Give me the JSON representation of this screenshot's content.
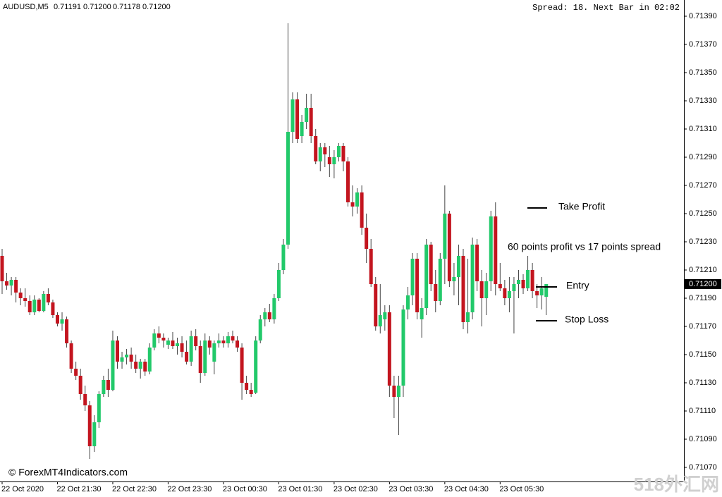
{
  "chart_data": {
    "type": "candlestick",
    "title": "AUDUSD,M5",
    "bar_values": [
      0.71191,
      {
        "value": 0.712,
        "label": "0.71200"
      },
      0.71178,
      {
        "value": 0.712,
        "label": "0.71200"
      }
    ],
    "status_text": "Spread: 18. Next Bar in 02:02",
    "copyright": "© ForexMT4Indicators.com",
    "watermark": "518外汇网",
    "annotation": "60 points profit vs 17 points spread",
    "up_color": "#22c96a",
    "down_color": "#c3151f",
    "wick_color": "#444444",
    "ylim": [
      0.7106,
      0.71398
    ],
    "yticks": [
      {
        "value": 0.7139,
        "label": "0.71390"
      },
      {
        "value": 0.7137,
        "label": "0.71370"
      },
      {
        "value": 0.7135,
        "label": "0.71350"
      },
      {
        "value": 0.7133,
        "label": "0.71330"
      },
      {
        "value": 0.7131,
        "label": "0.71310"
      },
      {
        "value": 0.7129,
        "label": "0.71290"
      },
      {
        "value": 0.7127,
        "label": "0.71270"
      },
      {
        "value": 0.7125,
        "label": "0.71250"
      },
      {
        "value": 0.7123,
        "label": "0.71230"
      },
      {
        "value": 0.7121,
        "label": "0.71210"
      },
      {
        "value": 0.7119,
        "label": "0.71190"
      },
      {
        "value": 0.7117,
        "label": "0.71170"
      },
      {
        "value": 0.7115,
        "label": "0.71150"
      },
      {
        "value": 0.7113,
        "label": "0.71130"
      },
      {
        "value": 0.7111,
        "label": "0.71110"
      },
      {
        "value": 0.7109,
        "label": "0.71090"
      },
      {
        "value": 0.7107,
        "label": "0.71070"
      }
    ],
    "current_price": {
      "value": 0.712,
      "label": "0.71200"
    },
    "levels": [
      {
        "label": "Take Profit",
        "value": 0.71254
      },
      {
        "label": "Entry",
        "value": 0.71198
      },
      {
        "label": "Stop Loss",
        "value": 0.71174
      }
    ],
    "categories": [
      "22 Oct 2020",
      null,
      null,
      null,
      null,
      null,
      null,
      null,
      null,
      null,
      null,
      null,
      "22 Oct 21:30",
      null,
      null,
      null,
      null,
      null,
      null,
      null,
      null,
      null,
      null,
      null,
      "22 Oct 22:30",
      null,
      null,
      null,
      null,
      null,
      null,
      null,
      null,
      null,
      null,
      null,
      "22 Oct 23:30",
      null,
      null,
      null,
      null,
      null,
      null,
      null,
      null,
      null,
      null,
      null,
      "23 Oct 00:30",
      null,
      null,
      null,
      null,
      null,
      null,
      null,
      null,
      null,
      null,
      null,
      "23 Oct 01:30",
      null,
      null,
      null,
      null,
      null,
      null,
      null,
      null,
      null,
      null,
      null,
      "23 Oct 02:30",
      null,
      null,
      null,
      null,
      null,
      null,
      null,
      null,
      null,
      null,
      null,
      "23 Oct 03:30",
      null,
      null,
      null,
      null,
      null,
      null,
      null,
      null,
      null,
      null,
      null,
      "23 Oct 04:30",
      null,
      null,
      null,
      null,
      null,
      null,
      null,
      null,
      null,
      null,
      null,
      "23 Oct 05:30",
      null,
      null,
      null,
      null,
      null,
      null,
      null,
      null,
      null,
      null
    ],
    "open": [
      0.7122,
      0.71202,
      0.71199,
      0.71203,
      0.71194,
      0.7119,
      0.71188,
      0.7118,
      0.71189,
      0.71181,
      0.71193,
      0.71187,
      0.71178,
      0.71172,
      0.71175,
      0.71158,
      0.7114,
      0.71135,
      0.71122,
      0.71114,
      0.71085,
      0.71102,
      0.71122,
      0.71132,
      0.71125,
      0.7116,
      0.71145,
      0.71148,
      0.7115,
      0.71145,
      0.7114,
      0.71145,
      0.71138,
      0.71155,
      0.71165,
      0.71162,
      0.71157,
      0.7116,
      0.71156,
      0.71158,
      0.71152,
      0.71145,
      0.71163,
      0.71156,
      0.71137,
      0.7116,
      0.71145,
      0.71158,
      0.7116,
      0.71158,
      0.71163,
      0.7116,
      0.71155,
      0.7113,
      0.71125,
      0.71123,
      0.7116,
      0.71175,
      0.7118,
      0.71175,
      0.7119,
      0.7121,
      0.71228,
      0.71308,
      0.71331,
      0.71305,
      0.71315,
      0.71325,
      0.71305,
      0.71287,
      0.71297,
      0.7129,
      0.71285,
      0.7129,
      0.71298,
      0.71287,
      0.71258,
      0.71255,
      0.71265,
      0.7124,
      0.71225,
      0.712,
      0.7117,
      0.71175,
      0.7118,
      0.71128,
      0.7112,
      0.71128,
      0.71182,
      0.71192,
      0.71218,
      0.71175,
      0.71183,
      0.71228,
      0.712,
      0.71188,
      0.71218,
      0.7125,
      0.71202,
      0.71205,
      0.7122,
      0.71173,
      0.7118,
      0.71228,
      0.71202,
      0.7119,
      0.71202,
      0.71248,
      0.712,
      0.71197,
      0.7119,
      0.71195,
      0.712,
      0.71203,
      0.71197,
      0.7121,
      0.71195,
      0.71192,
      0.71191
    ],
    "high": [
      0.71225,
      0.71208,
      0.71205,
      0.71205,
      0.71197,
      0.71197,
      0.71192,
      0.71192,
      0.7119,
      0.71195,
      0.71197,
      0.71189,
      0.7118,
      0.7118,
      0.71177,
      0.7116,
      0.71145,
      0.7114,
      0.71128,
      0.71117,
      0.71107,
      0.71124,
      0.71135,
      0.7114,
      0.71167,
      0.71163,
      0.71152,
      0.71154,
      0.71155,
      0.7115,
      0.71147,
      0.71147,
      0.71158,
      0.71168,
      0.7117,
      0.71165,
      0.71162,
      0.71166,
      0.71162,
      0.71163,
      0.7116,
      0.71167,
      0.71168,
      0.7116,
      0.71165,
      0.71163,
      0.7116,
      0.71165,
      0.71163,
      0.71166,
      0.71167,
      0.71163,
      0.71158,
      0.71135,
      0.7113,
      0.71163,
      0.71178,
      0.71183,
      0.71186,
      0.71193,
      0.71215,
      0.71232,
      0.71385,
      0.71336,
      0.71336,
      0.7132,
      0.71335,
      0.71335,
      0.7131,
      0.713,
      0.713,
      0.71298,
      0.71295,
      0.713,
      0.713,
      0.7129,
      0.7127,
      0.71268,
      0.7127,
      0.7125,
      0.71232,
      0.71205,
      0.712,
      0.71185,
      0.71185,
      0.71135,
      0.71135,
      0.71185,
      0.71198,
      0.71222,
      0.71222,
      0.7119,
      0.71232,
      0.7123,
      0.7121,
      0.71222,
      0.7127,
      0.71252,
      0.71215,
      0.71228,
      0.71225,
      0.71218,
      0.71233,
      0.71232,
      0.7121,
      0.71208,
      0.71252,
      0.71258,
      0.71215,
      0.71203,
      0.71205,
      0.71205,
      0.7121,
      0.71207,
      0.7122,
      0.71215,
      0.712,
      0.71205,
      0.712
    ],
    "low": [
      0.71193,
      0.71196,
      0.71192,
      0.71187,
      0.71185,
      0.71184,
      0.71178,
      0.71178,
      0.7118,
      0.7118,
      0.71185,
      0.71176,
      0.7117,
      0.71167,
      0.71155,
      0.71137,
      0.71132,
      0.71118,
      0.7111,
      0.71076,
      0.71081,
      0.71098,
      0.7112,
      0.7112,
      0.71124,
      0.7114,
      0.7114,
      0.71143,
      0.7114,
      0.71137,
      0.71133,
      0.71135,
      0.71136,
      0.71153,
      0.71158,
      0.71155,
      0.71154,
      0.71154,
      0.7115,
      0.71148,
      0.71143,
      0.71142,
      0.71153,
      0.7113,
      0.71135,
      0.7115,
      0.71136,
      0.71155,
      0.71155,
      0.71155,
      0.71158,
      0.71152,
      0.71118,
      0.71122,
      0.7112,
      0.71122,
      0.71158,
      0.7117,
      0.71173,
      0.71172,
      0.71188,
      0.71207,
      0.71225,
      0.713,
      0.713,
      0.713,
      0.7131,
      0.713,
      0.71285,
      0.7128,
      0.71283,
      0.71276,
      0.71275,
      0.71287,
      0.7128,
      0.71255,
      0.71248,
      0.7125,
      0.71235,
      0.71215,
      0.71198,
      0.71167,
      0.71165,
      0.71167,
      0.7112,
      0.71105,
      0.71093,
      0.7112,
      0.71175,
      0.71185,
      0.71175,
      0.71162,
      0.71178,
      0.71195,
      0.7118,
      0.71185,
      0.712,
      0.71198,
      0.71192,
      0.71185,
      0.71168,
      0.71165,
      0.71175,
      0.71195,
      0.7117,
      0.71178,
      0.71195,
      0.71192,
      0.71195,
      0.71185,
      0.7118,
      0.71165,
      0.7119,
      0.71193,
      0.71195,
      0.7119,
      0.71183,
      0.71182,
      0.71178
    ],
    "close": [
      0.71202,
      0.71199,
      0.71203,
      0.71194,
      0.7119,
      0.71188,
      0.7118,
      0.71189,
      0.71181,
      0.71193,
      0.71187,
      0.71178,
      0.71172,
      0.71175,
      0.71158,
      0.7114,
      0.71135,
      0.71122,
      0.71114,
      0.71085,
      0.71102,
      0.71122,
      0.71132,
      0.71125,
      0.7116,
      0.71145,
      0.71148,
      0.7115,
      0.71145,
      0.7114,
      0.71145,
      0.71138,
      0.71155,
      0.71165,
      0.71162,
      0.7116,
      0.7116,
      0.71156,
      0.71158,
      0.71152,
      0.71145,
      0.71163,
      0.71156,
      0.71137,
      0.7116,
      0.71155,
      0.71158,
      0.7116,
      0.71158,
      0.71163,
      0.7116,
      0.71155,
      0.7113,
      0.71125,
      0.71122,
      0.7116,
      0.71175,
      0.7118,
      0.71175,
      0.7119,
      0.7121,
      0.71228,
      0.71308,
      0.71331,
      0.71303,
      0.71315,
      0.71325,
      0.71305,
      0.71287,
      0.71297,
      0.71292,
      0.71285,
      0.7129,
      0.71298,
      0.71287,
      0.71258,
      0.71255,
      0.71265,
      0.7124,
      0.71225,
      0.712,
      0.7117,
      0.71178,
      0.7118,
      0.71128,
      0.7112,
      0.71128,
      0.71182,
      0.71192,
      0.71218,
      0.7118,
      0.71183,
      0.71228,
      0.712,
      0.71188,
      0.71218,
      0.7125,
      0.71202,
      0.71205,
      0.7122,
      0.71173,
      0.7118,
      0.71228,
      0.71202,
      0.7119,
      0.71202,
      0.71248,
      0.712,
      0.71197,
      0.7119,
      0.71195,
      0.712,
      0.71203,
      0.71197,
      0.7121,
      0.71195,
      0.71192,
      0.71197,
      0.712
    ]
  }
}
